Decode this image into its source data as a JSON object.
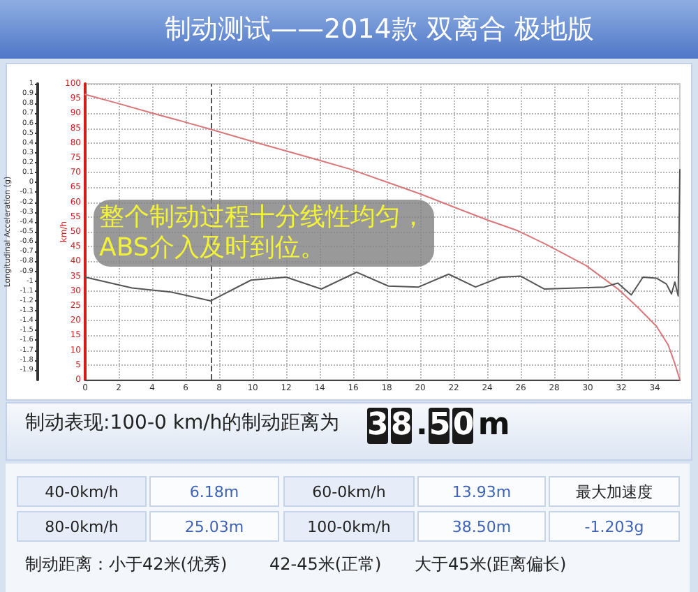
{
  "chart_data": [
    {
      "type": "line",
      "title": "制动测试——2014款 双离合 极地版",
      "ylabel": "km/h",
      "y2label": "Longitudinal Acceleration (g)",
      "xlim": [
        0,
        35.5
      ],
      "xticks": [
        0,
        2,
        4,
        6,
        8,
        10,
        12,
        14,
        16,
        18,
        20,
        22,
        24,
        26,
        28,
        30,
        32,
        34
      ],
      "ylim": [
        0,
        100
      ],
      "yticks": [
        0,
        5,
        10,
        15,
        20,
        25,
        30,
        35,
        40,
        45,
        50,
        55,
        60,
        65,
        70,
        75,
        80,
        85,
        90,
        95,
        100
      ],
      "y2lim": [
        -2,
        1
      ],
      "y2ticks": [
        -1.9,
        -1.8,
        -1.7,
        -1.6,
        -1.5,
        -1.4,
        -1.3,
        -1.2,
        -1.1,
        -1,
        -0.9,
        -0.8,
        -0.7,
        -0.6,
        -0.5,
        -0.4,
        -0.3,
        -0.2,
        -0.1,
        0,
        0.1,
        0.2,
        0.3,
        0.4,
        0.5,
        0.6,
        0.7,
        0.8,
        0.9,
        1
      ],
      "grid": true,
      "marker": "none",
      "series": [
        {
          "color": "#d9777a",
          "x": [
            0,
            2,
            4,
            6,
            7.5,
            10,
            12,
            14,
            15.8,
            18,
            20,
            22.4,
            24,
            25.8,
            27.5,
            29.9,
            31.8,
            33,
            34.1,
            34.8,
            35.2,
            35.5
          ],
          "values": [
            96.4,
            93.3,
            90.1,
            87.0,
            84.6,
            80.5,
            77.3,
            74.1,
            71.2,
            66.8,
            62.8,
            57.5,
            54.0,
            50.4,
            45.8,
            38.6,
            30.7,
            24.4,
            18.1,
            11.8,
            5.5,
            0
          ]
        },
        {
          "color": "#555555",
          "axis": "y2",
          "x": [
            0,
            2.8,
            5.1,
            7.5,
            9.9,
            12,
            14.1,
            16.2,
            18.1,
            19.9,
            21.7,
            23.3,
            24.8,
            26,
            27.4,
            31,
            31.8,
            32.6,
            33.3,
            34.1,
            34.7,
            35,
            35.2,
            35.4,
            35.5
          ],
          "values": [
            -0.96,
            -1.07,
            -1.11,
            -1.2,
            -0.99,
            -0.96,
            -1.08,
            -0.91,
            -1.05,
            -1.06,
            -0.93,
            -1.06,
            -0.96,
            -0.95,
            -1.08,
            -1.06,
            -1.02,
            -1.14,
            -0.96,
            -0.97,
            -1.03,
            -1.13,
            -1.01,
            -1.15,
            0.13
          ]
        }
      ],
      "ref_lines": [
        {
          "axis": "x",
          "value": 7.5,
          "color": "#555555",
          "line_style": "dashed"
        }
      ],
      "annotations": [
        "整个制动过程十分线性均匀，\nABS介入及时到位。"
      ]
    },
    {
      "type": "other",
      "title": "制动表现:100-0 km/h的制动距离为",
      "annotations": [
        "38.50m",
        "40-0km/h",
        "6.18m",
        "60-0km/h",
        "13.93m",
        "最大加速度",
        "80-0km/h",
        "25.03m",
        "100-0km/h",
        "38.50m",
        "-1.203g",
        "制动距离：小于42米(优秀)",
        "42-45米(正常)",
        "大于45米(距离偏长)"
      ]
    }
  ]
}
